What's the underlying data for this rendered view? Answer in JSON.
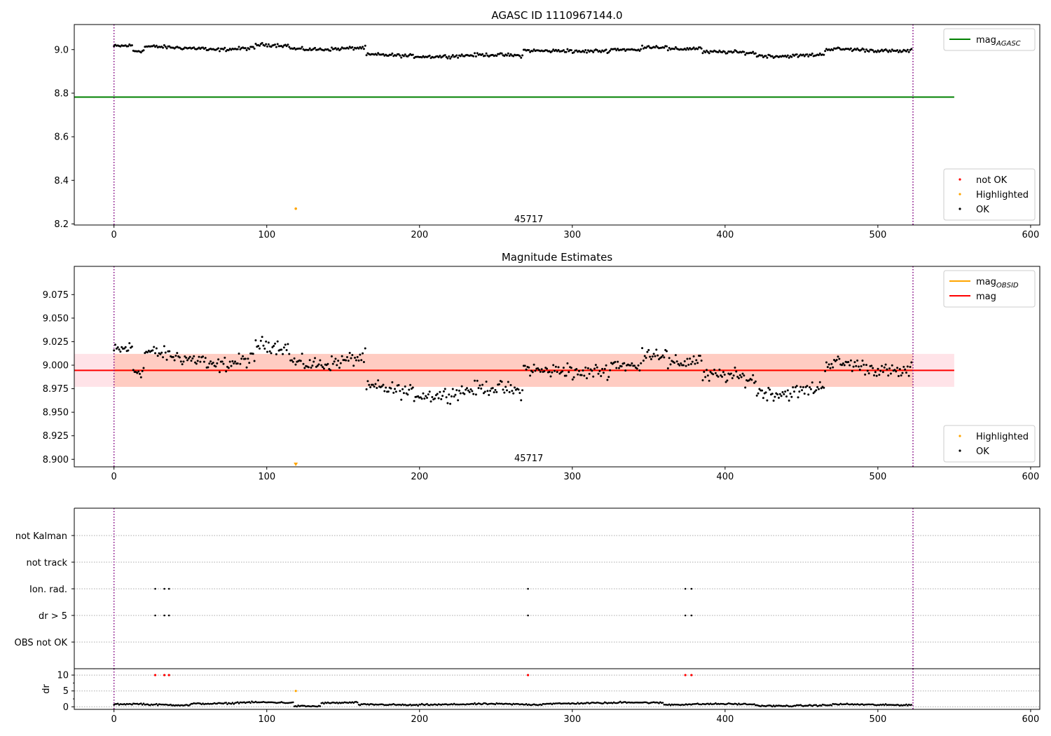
{
  "figure": {
    "source_marker_label": "45717"
  },
  "chart_data": [
    {
      "type": "scatter",
      "title": "AGASC ID 1110967144.0",
      "xlim": [
        -26,
        606
      ],
      "ylim": [
        8.195,
        9.115
      ],
      "xticks": [
        0,
        100,
        200,
        300,
        400,
        500,
        600
      ],
      "yticks": [
        8.2,
        8.4,
        8.6,
        8.8,
        9.0
      ],
      "ytick_labels": [
        "8.2",
        "8.4",
        "8.6",
        "8.8",
        "9.0"
      ],
      "grid": false,
      "vlines": [
        0,
        523
      ],
      "legends": [
        {
          "placement": "top-right",
          "entries": [
            {
              "label": "mag",
              "sub": "AGASC",
              "color": "#008000",
              "kind": "line"
            }
          ]
        },
        {
          "placement": "bottom-right",
          "entries": [
            {
              "label": "not OK",
              "color": "#ff0000",
              "kind": "dot"
            },
            {
              "label": "Highlighted",
              "color": "#ffa500",
              "kind": "dot"
            },
            {
              "label": "OK",
              "color": "#000000",
              "kind": "dot"
            }
          ]
        }
      ],
      "hlines": [
        {
          "name": "mag_AGASC",
          "y": 8.782,
          "x_range": [
            -26,
            550
          ],
          "color": "#008000"
        }
      ],
      "series_profile": {
        "name": "OK",
        "color": "#000000",
        "x_range": [
          0,
          522
        ],
        "n_points": 620,
        "segments": [
          {
            "x_start": 0,
            "x_end": 12,
            "level": 9.015
          },
          {
            "x_start": 12,
            "x_end": 20,
            "level": 8.99
          },
          {
            "x_start": 20,
            "x_end": 60,
            "level": 9.01
          },
          {
            "x_start": 60,
            "x_end": 92,
            "level": 9.002
          },
          {
            "x_start": 92,
            "x_end": 115,
            "level": 9.018
          },
          {
            "x_start": 115,
            "x_end": 165,
            "level": 9.005
          },
          {
            "x_start": 165,
            "x_end": 268,
            "level": 8.972
          },
          {
            "x_start": 268,
            "x_end": 300,
            "level": 8.998
          },
          {
            "x_start": 300,
            "x_end": 325,
            "level": 8.99
          },
          {
            "x_start": 325,
            "x_end": 345,
            "level": 8.998
          },
          {
            "x_start": 345,
            "x_end": 362,
            "level": 9.016
          },
          {
            "x_start": 362,
            "x_end": 385,
            "level": 9.005
          },
          {
            "x_start": 385,
            "x_end": 420,
            "level": 8.985
          },
          {
            "x_start": 420,
            "x_end": 465,
            "level": 8.974
          },
          {
            "x_start": 465,
            "x_end": 505,
            "level": 8.998
          },
          {
            "x_start": 505,
            "x_end": 523,
            "level": 8.997
          }
        ],
        "noise": 0.012
      },
      "highlighted_points": [
        {
          "x": 119,
          "y": 8.27
        }
      ],
      "text_annotations": [
        {
          "x": 262,
          "y": 8.22,
          "text_ref": "figure.source_marker_label"
        }
      ]
    },
    {
      "type": "scatter",
      "title": "Magnitude Estimates",
      "xlim": [
        -26,
        606
      ],
      "ylim": [
        8.892,
        9.105
      ],
      "xticks": [
        0,
        100,
        200,
        300,
        400,
        500,
        600
      ],
      "yticks": [
        8.9,
        8.925,
        8.95,
        8.975,
        9.0,
        9.025,
        9.05,
        9.075
      ],
      "ytick_labels": [
        "8.900",
        "8.925",
        "8.950",
        "8.975",
        "9.000",
        "9.025",
        "9.050",
        "9.075"
      ],
      "grid": false,
      "vlines": [
        0,
        523
      ],
      "legends": [
        {
          "placement": "top-right",
          "entries": [
            {
              "label": "mag",
              "sub": "OBSID",
              "color": "#ffa500",
              "kind": "line"
            },
            {
              "label": "mag",
              "color": "#ff0000",
              "kind": "line"
            }
          ]
        },
        {
          "placement": "bottom-right",
          "entries": [
            {
              "label": "Highlighted",
              "color": "#ffa500",
              "kind": "dot"
            },
            {
              "label": "OK",
              "color": "#000000",
              "kind": "dot"
            }
          ]
        }
      ],
      "bands": [
        {
          "y0": 8.977,
          "y1": 9.012,
          "x_range": [
            -26,
            550
          ],
          "color": "#ffc0cb",
          "opacity": 0.45
        },
        {
          "y0": 8.977,
          "y1": 9.012,
          "x_range": [
            0,
            523
          ],
          "color": "#ffa07a",
          "opacity": 0.35
        }
      ],
      "hlines": [
        {
          "name": "mag_OBSID",
          "y": 8.9945,
          "x_range": [
            0,
            523
          ],
          "color": "#ffa500"
        },
        {
          "name": "mag",
          "y": 8.9945,
          "x_range": [
            -26,
            550
          ],
          "color": "#ff0000"
        }
      ],
      "series_profile_ref": 0,
      "highlighted_points": [
        {
          "x": 119,
          "y": 8.895
        }
      ],
      "text_annotations": [
        {
          "x": 262,
          "y": 8.898,
          "text_ref": "figure.source_marker_label"
        }
      ]
    },
    {
      "type": "scatter",
      "title": "",
      "xlim": [
        -26,
        606
      ],
      "xticks": [
        0,
        100,
        200,
        300,
        400,
        500,
        600
      ],
      "vlines": [
        0,
        523
      ],
      "flag_rows": [
        "not Kalman",
        "not track",
        "Ion. rad.",
        "dr > 5",
        "OBS not OK"
      ],
      "flag_points": [
        {
          "row": "Ion. rad.",
          "x": [
            27,
            33,
            36,
            271,
            374,
            378
          ]
        },
        {
          "row": "dr > 5",
          "x": [
            27,
            33,
            36,
            271,
            374,
            378
          ]
        }
      ],
      "dr_panel": {
        "ylabel": "dr",
        "ylim": [
          -0.8,
          12
        ],
        "yticks": [
          0,
          5,
          10
        ],
        "minor_yticks": [
          2.5,
          7.5
        ],
        "outliers": [
          {
            "x": 27,
            "y": 10,
            "color": "#ff0000"
          },
          {
            "x": 33,
            "y": 10,
            "color": "#ff0000"
          },
          {
            "x": 36,
            "y": 10,
            "color": "#ff0000"
          },
          {
            "x": 271,
            "y": 10,
            "color": "#ff0000"
          },
          {
            "x": 374,
            "y": 10,
            "color": "#ff0000"
          },
          {
            "x": 378,
            "y": 10,
            "color": "#ff0000"
          },
          {
            "x": 119,
            "y": 5,
            "color": "#ffa500"
          }
        ],
        "baseline_profile": {
          "x_range": [
            0,
            522
          ],
          "n_points": 620,
          "segments": [
            {
              "x_start": 0,
              "x_end": 20,
              "level": 0.8
            },
            {
              "x_start": 20,
              "x_end": 50,
              "level": 0.6
            },
            {
              "x_start": 50,
              "x_end": 80,
              "level": 1.1
            },
            {
              "x_start": 80,
              "x_end": 118,
              "level": 1.3
            },
            {
              "x_start": 118,
              "x_end": 135,
              "level": 0.3
            },
            {
              "x_start": 135,
              "x_end": 160,
              "level": 1.3
            },
            {
              "x_start": 160,
              "x_end": 200,
              "level": 0.6
            },
            {
              "x_start": 200,
              "x_end": 280,
              "level": 0.8
            },
            {
              "x_start": 280,
              "x_end": 330,
              "level": 1.1
            },
            {
              "x_start": 330,
              "x_end": 360,
              "level": 1.4
            },
            {
              "x_start": 360,
              "x_end": 420,
              "level": 0.8
            },
            {
              "x_start": 420,
              "x_end": 470,
              "level": 0.4
            },
            {
              "x_start": 470,
              "x_end": 523,
              "level": 0.7
            }
          ],
          "noise": 0.35
        }
      }
    }
  ]
}
